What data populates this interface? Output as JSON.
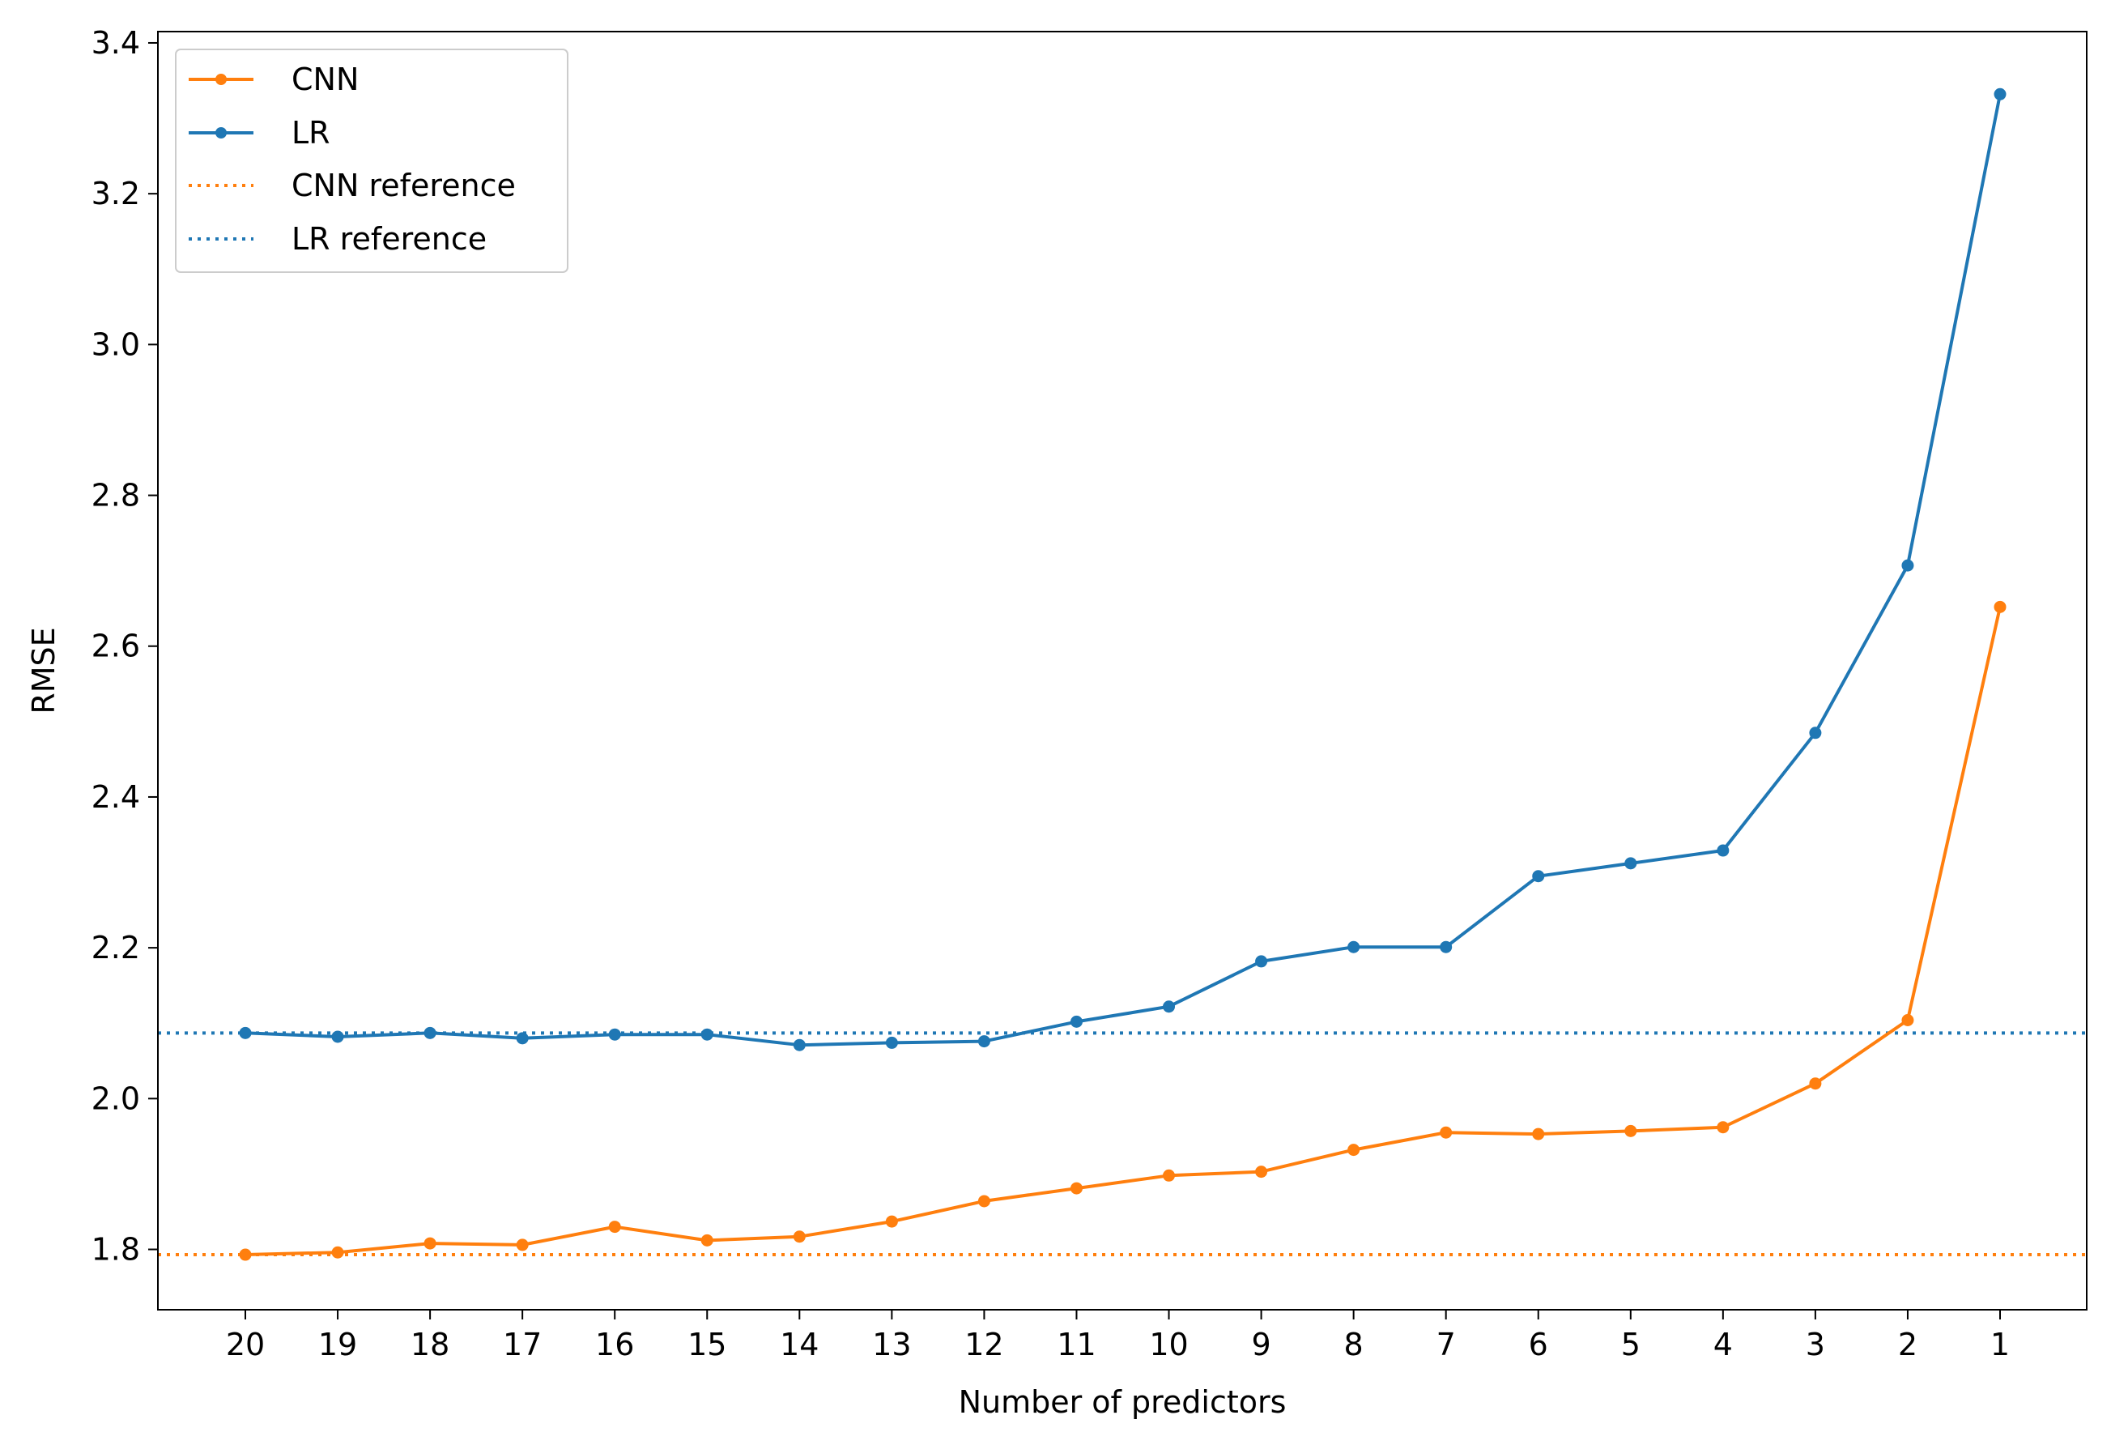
{
  "chart_data": {
    "type": "line",
    "title": "",
    "xlabel": "Number of predictors",
    "ylabel": "RMSE",
    "categories": [
      "20",
      "19",
      "18",
      "17",
      "16",
      "15",
      "14",
      "13",
      "12",
      "11",
      "10",
      "9",
      "8",
      "7",
      "6",
      "5",
      "4",
      "3",
      "2",
      "1"
    ],
    "ylim": [
      1.72,
      3.415
    ],
    "yticks": [
      "1.8",
      "2.0",
      "2.2",
      "2.4",
      "2.6",
      "2.8",
      "3.0",
      "3.2",
      "3.4"
    ],
    "series": [
      {
        "name": "CNN",
        "color": "#ff7f0e",
        "style": "solid-marker",
        "values": [
          1.793,
          1.796,
          1.808,
          1.806,
          1.83,
          1.812,
          1.817,
          1.837,
          1.864,
          1.881,
          1.898,
          1.903,
          1.932,
          1.955,
          1.953,
          1.957,
          1.962,
          2.02,
          2.104,
          2.652
        ]
      },
      {
        "name": "LR",
        "color": "#1f77b4",
        "style": "solid-marker",
        "values": [
          2.087,
          2.082,
          2.087,
          2.08,
          2.085,
          2.085,
          2.071,
          2.074,
          2.076,
          2.102,
          2.122,
          2.182,
          2.201,
          2.201,
          2.295,
          2.312,
          2.329,
          2.485,
          2.707,
          3.332
        ]
      }
    ],
    "reference_lines": [
      {
        "name": "CNN reference",
        "color": "#ff7f0e",
        "value": 1.793,
        "style": "dotted"
      },
      {
        "name": "LR reference",
        "color": "#1f77b4",
        "value": 2.087,
        "style": "dotted"
      }
    ],
    "legend": {
      "position": "top-left",
      "entries": [
        "CNN",
        "LR",
        "CNN reference",
        "LR reference"
      ]
    },
    "grid": false
  }
}
